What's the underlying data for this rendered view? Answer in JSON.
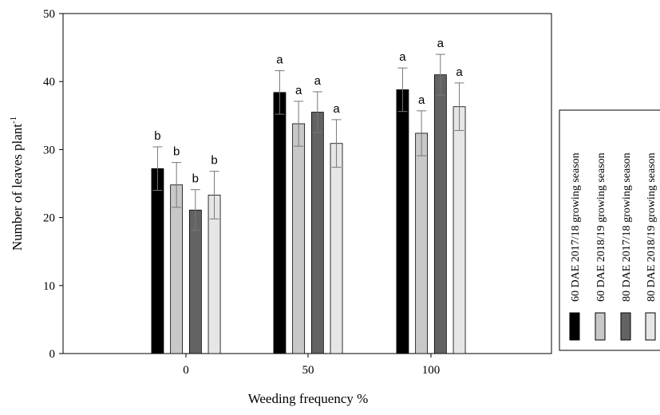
{
  "chart_data": {
    "type": "bar",
    "xlabel": "Weeding frequency %",
    "ylabel_main": "Number of  leaves plant",
    "ylabel_sup": "-1",
    "ylim": [
      0,
      50
    ],
    "yticks": [
      0,
      10,
      20,
      30,
      40,
      50
    ],
    "categories": [
      "0",
      "50",
      "100"
    ],
    "series": [
      {
        "name": "60 DAE 2017/18 growing season",
        "color": "#000000",
        "values": [
          27.2,
          38.4,
          38.8
        ],
        "errors": [
          3.2,
          3.2,
          3.2
        ],
        "letters": [
          "b",
          "a",
          "a"
        ]
      },
      {
        "name": "60 DAE 2018/19 growing season",
        "color": "#c8c8c8",
        "values": [
          24.8,
          33.8,
          32.4
        ],
        "errors": [
          3.3,
          3.3,
          3.3
        ],
        "letters": [
          "b",
          "a",
          "a"
        ]
      },
      {
        "name": "80 DAE 2017/18 growing season",
        "color": "#636363",
        "values": [
          21.1,
          35.5,
          41.0
        ],
        "errors": [
          3.0,
          3.0,
          3.0
        ],
        "letters": [
          "b",
          "a",
          "a"
        ]
      },
      {
        "name": "80 DAE 2018/19 growing season",
        "color": "#e6e6e6",
        "values": [
          23.3,
          30.9,
          36.3
        ],
        "errors": [
          3.5,
          3.5,
          3.5
        ],
        "letters": [
          "b",
          "a",
          "a"
        ]
      }
    ],
    "legend_position": "right"
  }
}
